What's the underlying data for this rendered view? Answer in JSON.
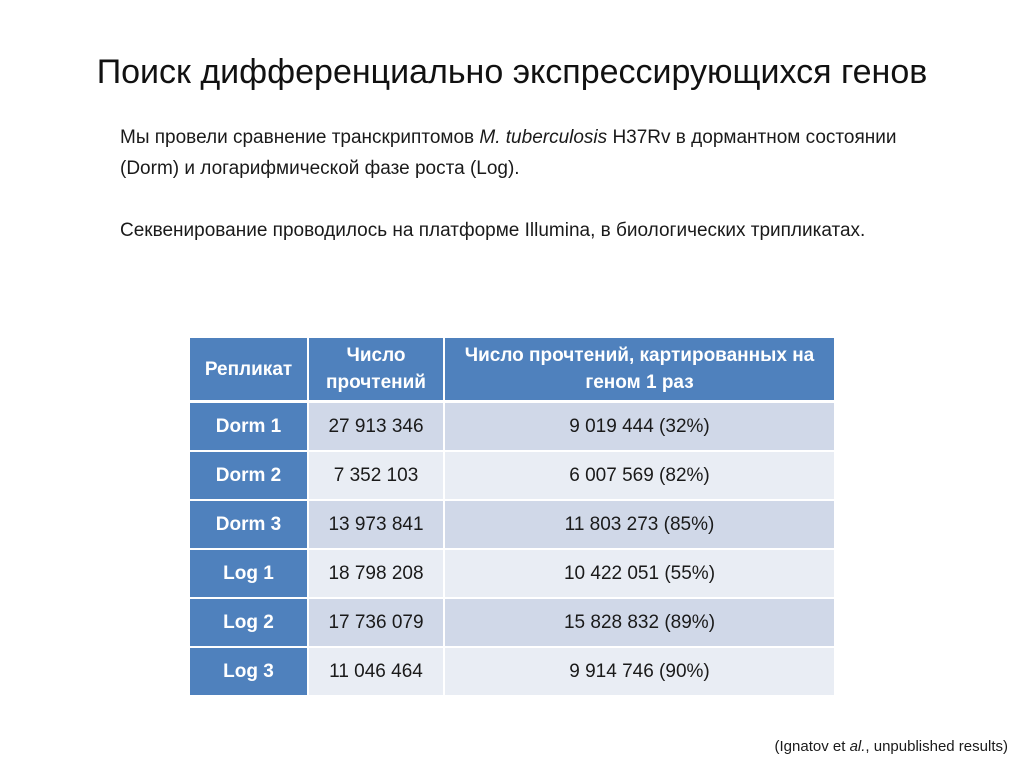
{
  "slide": {
    "title": "Поиск дифференциально экспрессирующихся генов",
    "paragraph1": {
      "part1": "Мы провели сравнение транскриптомов ",
      "species": "M. tuberculosis",
      "part2": " H37Rv в дормантном состоянии (Dorm) и логарифмической фазе роста (Log)."
    },
    "paragraph2": "Секвенирование проводилось на платформе Illumina, в биологических трипликатах.",
    "table": {
      "headers": [
        "Репликат",
        "Число прочтений",
        "Число прочтений, картированных на геном 1 раз"
      ],
      "rows": [
        {
          "replicate": "Dorm 1",
          "reads": "27 913 346",
          "mapped": "9 019 444 (32%)"
        },
        {
          "replicate": "Dorm 2",
          "reads": "7 352 103",
          "mapped": "6 007 569 (82%)"
        },
        {
          "replicate": "Dorm 3",
          "reads": "13 973 841",
          "mapped": "11 803 273 (85%)"
        },
        {
          "replicate": "Log 1",
          "reads": "18 798 208",
          "mapped": "10 422 051 (55%)"
        },
        {
          "replicate": "Log 2",
          "reads": "17 736 079",
          "mapped": "15 828 832 (89%)"
        },
        {
          "replicate": "Log 3",
          "reads": "11 046 464",
          "mapped": "9 914 746 (90%)"
        }
      ]
    },
    "citation": {
      "prefix": "(Ignatov et ",
      "italic": "al.",
      "suffix": ", unpublished results)"
    }
  },
  "colors": {
    "header_bg": "#4f81bd",
    "row_odd_bg": "#d0d8e8",
    "row_even_bg": "#e9edf4",
    "header_text": "#ffffff"
  }
}
